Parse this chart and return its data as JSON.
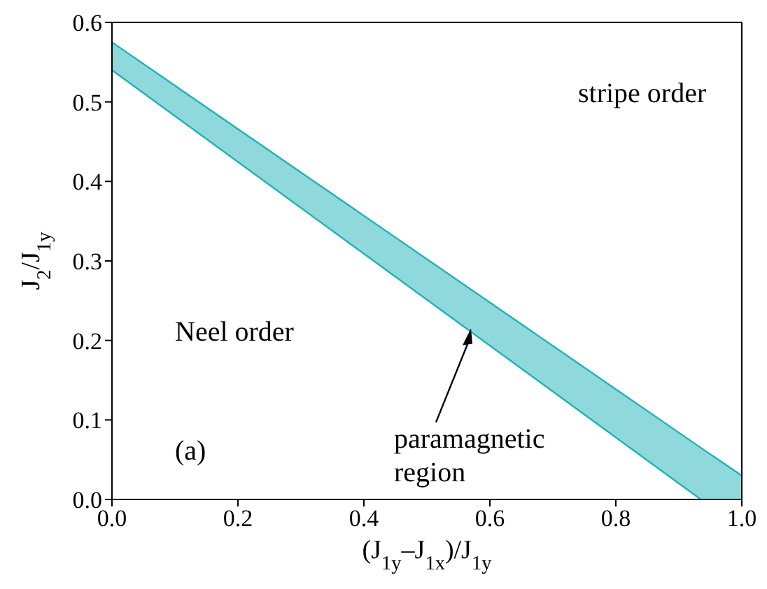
{
  "chart_data": {
    "type": "line",
    "xlabel": "(J$_{1y}$–J$_{1x}$)/J$_{1y}$",
    "ylabel": "J$_{2}$/J$_{1y}$",
    "series": [
      {
        "color": "#20b2b8",
        "x": [
          0,
          0.935,
          1
        ],
        "values": [
          0.575,
          0.065,
          0.03
        ],
        "lower": [
          0.54,
          0,
          0
        ],
        "upper": [
          0.575,
          0.065,
          0.03
        ]
      },
      {
        "color": "#20b2b8",
        "x": [
          0,
          0.935
        ],
        "values": [
          0.54,
          0
        ]
      }
    ],
    "xlim": [
      0,
      1
    ],
    "ylim": [
      0,
      0.6
    ],
    "xticks": [
      {
        "value": 0,
        "label": "0.0"
      },
      {
        "value": 0.2,
        "label": "0.2"
      },
      {
        "value": 0.4,
        "label": "0.4"
      },
      {
        "value": 0.6,
        "label": "0.6"
      },
      {
        "value": 0.8,
        "label": "0.8"
      },
      {
        "value": 1,
        "label": "1.0"
      }
    ],
    "yticks": [
      {
        "value": 0,
        "label": "0.0"
      },
      {
        "value": 0.1,
        "label": "0.1"
      },
      {
        "value": 0.2,
        "label": "0.2"
      },
      {
        "value": 0.3,
        "label": "0.3"
      },
      {
        "value": 0.4,
        "label": "0.4"
      },
      {
        "value": 0.5,
        "label": "0.5"
      },
      {
        "value": 0.6,
        "label": "0.6"
      }
    ],
    "annotations": [
      "stripe order",
      "Neel order",
      "(a)",
      "paramagnetic\nregion"
    ],
    "grid": false,
    "legend": false
  }
}
